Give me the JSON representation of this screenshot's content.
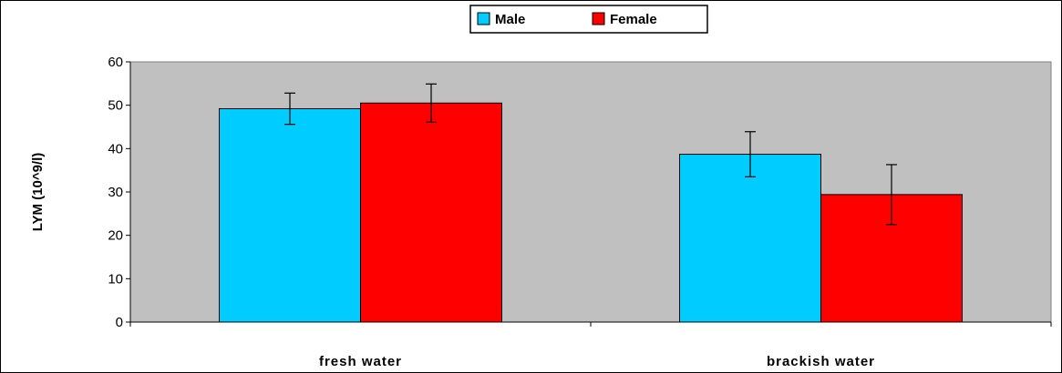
{
  "chart_data": {
    "type": "bar",
    "title": "",
    "xlabel": "",
    "ylabel": "LYM (10^9/l)",
    "categories": [
      "fresh water",
      "brackish water"
    ],
    "ylim": [
      0,
      60
    ],
    "yticks": [
      0,
      10,
      20,
      30,
      40,
      50,
      60
    ],
    "grid": false,
    "legend_position": "top-center",
    "series": [
      {
        "name": "Male",
        "color": "#00CCFF",
        "values": [
          49.2,
          38.7
        ],
        "errors": [
          3.6,
          5.2
        ]
      },
      {
        "name": "Female",
        "color": "#FF0000",
        "values": [
          50.5,
          29.4
        ],
        "errors": [
          4.4,
          6.9
        ]
      }
    ],
    "plot_background": "#C0C0C0"
  }
}
